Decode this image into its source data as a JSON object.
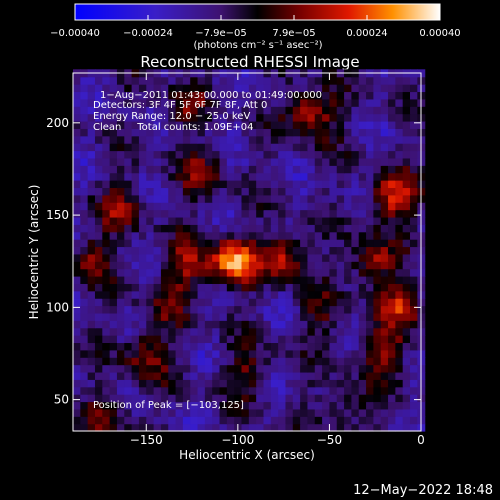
{
  "chart_data": {
    "type": "heatmap",
    "title": "Reconstructed RHESSI Image",
    "xlabel": "Heliocentric X (arcsec)",
    "ylabel": "Heliocentric Y (arcsec)",
    "xlim": [
      -190,
      0
    ],
    "ylim": [
      33,
      227
    ],
    "x_ticks": [
      -150,
      -100,
      -50,
      0
    ],
    "x_tick_labels": [
      "−150",
      "−100",
      "−50",
      "0"
    ],
    "y_ticks": [
      50,
      100,
      150,
      200
    ],
    "y_tick_labels": [
      "50",
      "100",
      "150",
      "200"
    ],
    "colorbar": {
      "range": [
        -0.0004,
        0.0004
      ],
      "tick_labels": [
        "−0.00040",
        "−0.00024",
        "−7.9e−05",
        "7.9e−05",
        "0.00024",
        "0.00040"
      ],
      "units_label": "(photons cm⁻² s⁻¹ asec⁻²)"
    },
    "annotations": {
      "time": "1−Aug−2011 01:43:00.000 to 01:49:00.000",
      "detectors": "Detectors: 3F 4F 5F 6F 7F 8F, Att 0",
      "energy": "Energy Range: 12.0 − 25.0 keV",
      "clean": "Clean     Total counts: 1.09E+04",
      "peak": "Position of Peak = [−103,125]"
    },
    "peak": {
      "x": -103,
      "y": 125
    },
    "bright_sources": [
      {
        "x": -103,
        "y": 125,
        "amp": 0.00038
      },
      {
        "x": -75,
        "y": 128,
        "amp": 0.00028
      },
      {
        "x": -128,
        "y": 122,
        "amp": 0.00022
      },
      {
        "x": -60,
        "y": 206,
        "amp": 0.0003
      },
      {
        "x": -15,
        "y": 160,
        "amp": 0.0003
      },
      {
        "x": -10,
        "y": 102,
        "amp": 0.00026
      },
      {
        "x": -28,
        "y": 125,
        "amp": 0.00024
      },
      {
        "x": -20,
        "y": 75,
        "amp": 0.00022
      },
      {
        "x": -150,
        "y": 75,
        "amp": 0.0002
      },
      {
        "x": -180,
        "y": 128,
        "amp": 0.00018
      },
      {
        "x": -165,
        "y": 155,
        "amp": 0.00016
      },
      {
        "x": -120,
        "y": 172,
        "amp": 0.00016
      },
      {
        "x": -130,
        "y": 208,
        "amp": 0.00014
      },
      {
        "x": -95,
        "y": 65,
        "amp": 0.00016
      },
      {
        "x": -40,
        "y": 45,
        "amp": 0.00014
      },
      {
        "x": -170,
        "y": 42,
        "amp": 0.00014
      },
      {
        "x": -55,
        "y": 95,
        "amp": 0.00012
      },
      {
        "x": -140,
        "y": 100,
        "amp": 0.00012
      }
    ]
  },
  "footer": {
    "datetime": "12−May−2022 18:48"
  }
}
